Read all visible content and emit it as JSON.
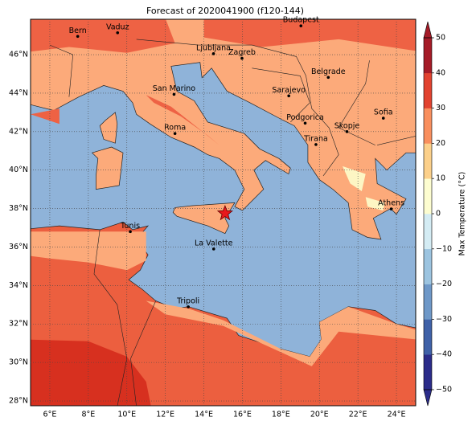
{
  "title": "Forecast of 2020041900 (f120-144)",
  "map": {
    "xlim": [
      5,
      25
    ],
    "ylim": [
      27.75,
      47.84
    ],
    "xticks": [
      {
        "value": 6,
        "label": "6°E"
      },
      {
        "value": 8,
        "label": "8°E"
      },
      {
        "value": 10,
        "label": "10°E"
      },
      {
        "value": 12,
        "label": "12°E"
      },
      {
        "value": 14,
        "label": "14°E"
      },
      {
        "value": 16,
        "label": "16°E"
      },
      {
        "value": 18,
        "label": "18°E"
      },
      {
        "value": 20,
        "label": "20°E"
      },
      {
        "value": 22,
        "label": "22°E"
      },
      {
        "value": 24,
        "label": "24°E"
      }
    ],
    "yticks": [
      {
        "value": 28,
        "label": "28°N"
      },
      {
        "value": 30,
        "label": "30°N"
      },
      {
        "value": 32,
        "label": "32°N"
      },
      {
        "value": 34,
        "label": "34°N"
      },
      {
        "value": 36,
        "label": "36°N"
      },
      {
        "value": 38,
        "label": "38°N"
      },
      {
        "value": 40,
        "label": "40°N"
      },
      {
        "value": 42,
        "label": "42°N"
      },
      {
        "value": 44,
        "label": "44°N"
      },
      {
        "value": 46,
        "label": "46°N"
      }
    ],
    "cities": [
      "Bern",
      "Vaduz",
      "Budapest",
      "Ljubljana",
      "Zagreb",
      "Belgrade",
      "San Marino",
      "Sarajevo",
      "Roma",
      "Podgorica",
      "Skopje",
      "Sofia",
      "Tirana",
      "Athens",
      "Tunis",
      "La Valette",
      "Tripoli"
    ]
  },
  "colorbar": {
    "label": "Max Temperature (°C)",
    "lim": [
      -50,
      50
    ],
    "colors": [
      "#2b2c8a",
      "#3f61a8",
      "#6e98c8",
      "#9cc4e0",
      "#d4ecf4",
      "#fdfdd0",
      "#fcd08a",
      "#f98f5e",
      "#e2422f",
      "#a51b27"
    ],
    "ticks": [
      {
        "value": -50,
        "label": "−50"
      },
      {
        "value": -40,
        "label": "−40"
      },
      {
        "value": -30,
        "label": "−30"
      },
      {
        "value": -20,
        "label": "−20"
      },
      {
        "value": -10,
        "label": "−10"
      },
      0,
      10,
      20,
      30,
      40,
      50
    ]
  }
}
